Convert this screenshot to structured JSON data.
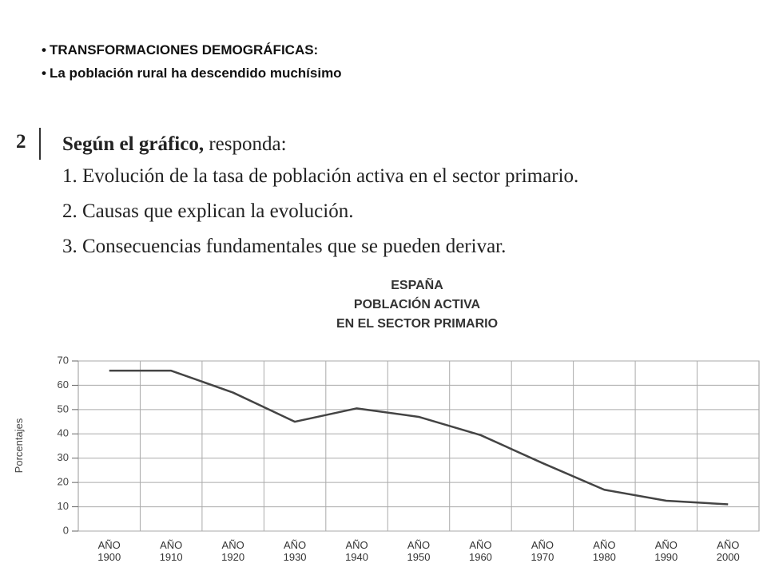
{
  "slide": {
    "bullets": [
      "TRANSFORMACIONES DEMOGRÁFICAS:",
      "La población rural ha descendido muchísimo"
    ]
  },
  "question": {
    "number": "2",
    "lead": "Según el gráfico,",
    "rest": "responda:",
    "items": [
      "1. Evolución de la tasa de población activa en el sector primario.",
      "2. Causas que explican la evolución.",
      "3. Consecuencias fundamentales que se pueden derivar."
    ]
  },
  "chart_data": {
    "type": "line",
    "title": [
      "ESPAÑA",
      "POBLACIÓN ACTIVA",
      "EN EL SECTOR PRIMARIO"
    ],
    "ylabel": "Porcentajes",
    "categories": [
      "AÑO 1900",
      "AÑO 1910",
      "AÑO 1920",
      "AÑO 1930",
      "AÑO 1940",
      "AÑO 1950",
      "AÑO 1960",
      "AÑO 1970",
      "AÑO 1980",
      "AÑO 1990",
      "AÑO 2000"
    ],
    "values": [
      66,
      66,
      57,
      45,
      50.5,
      47,
      39.5,
      28,
      17,
      12.5,
      11
    ],
    "color": "#444444",
    "ylim": [
      0,
      70
    ],
    "yticks": [
      0,
      10,
      20,
      30,
      40,
      50,
      60,
      70
    ],
    "grid": true
  }
}
